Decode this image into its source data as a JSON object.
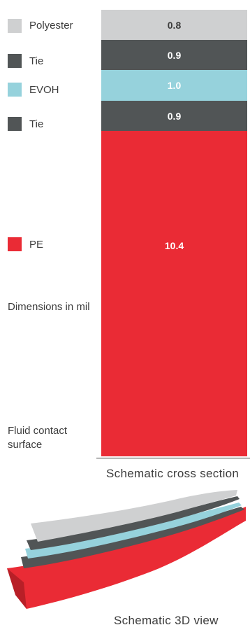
{
  "legend": [
    {
      "label": "Polyester",
      "color": "#cfd0d1"
    },
    {
      "label": "Tie",
      "color": "#515556"
    },
    {
      "label": "EVOH",
      "color": "#96d2dc"
    },
    {
      "label": "Tie",
      "color": "#515556"
    },
    {
      "label": "PE",
      "color": "#ea2b35"
    }
  ],
  "layers": [
    {
      "name": "Polyester",
      "thickness": "0.8",
      "color": "#cfd0d1",
      "text_color": "#3c3c3c"
    },
    {
      "name": "Tie",
      "thickness": "0.9",
      "color": "#515556",
      "text_color": "#ffffff"
    },
    {
      "name": "EVOH",
      "thickness": "1.0",
      "color": "#96d2dc",
      "text_color": "#ffffff"
    },
    {
      "name": "Tie",
      "thickness": "0.9",
      "color": "#515556",
      "text_color": "#ffffff"
    },
    {
      "name": "PE",
      "thickness": "10.4",
      "color": "#ea2b35",
      "text_color": "#ffffff"
    }
  ],
  "notes": {
    "dimensions": "Dimensions in mil",
    "fluid_contact_line1": "Fluid contact",
    "fluid_contact_line2": "surface"
  },
  "captions": {
    "cross_section": "Schematic cross section",
    "view_3d": "Schematic 3D view"
  }
}
